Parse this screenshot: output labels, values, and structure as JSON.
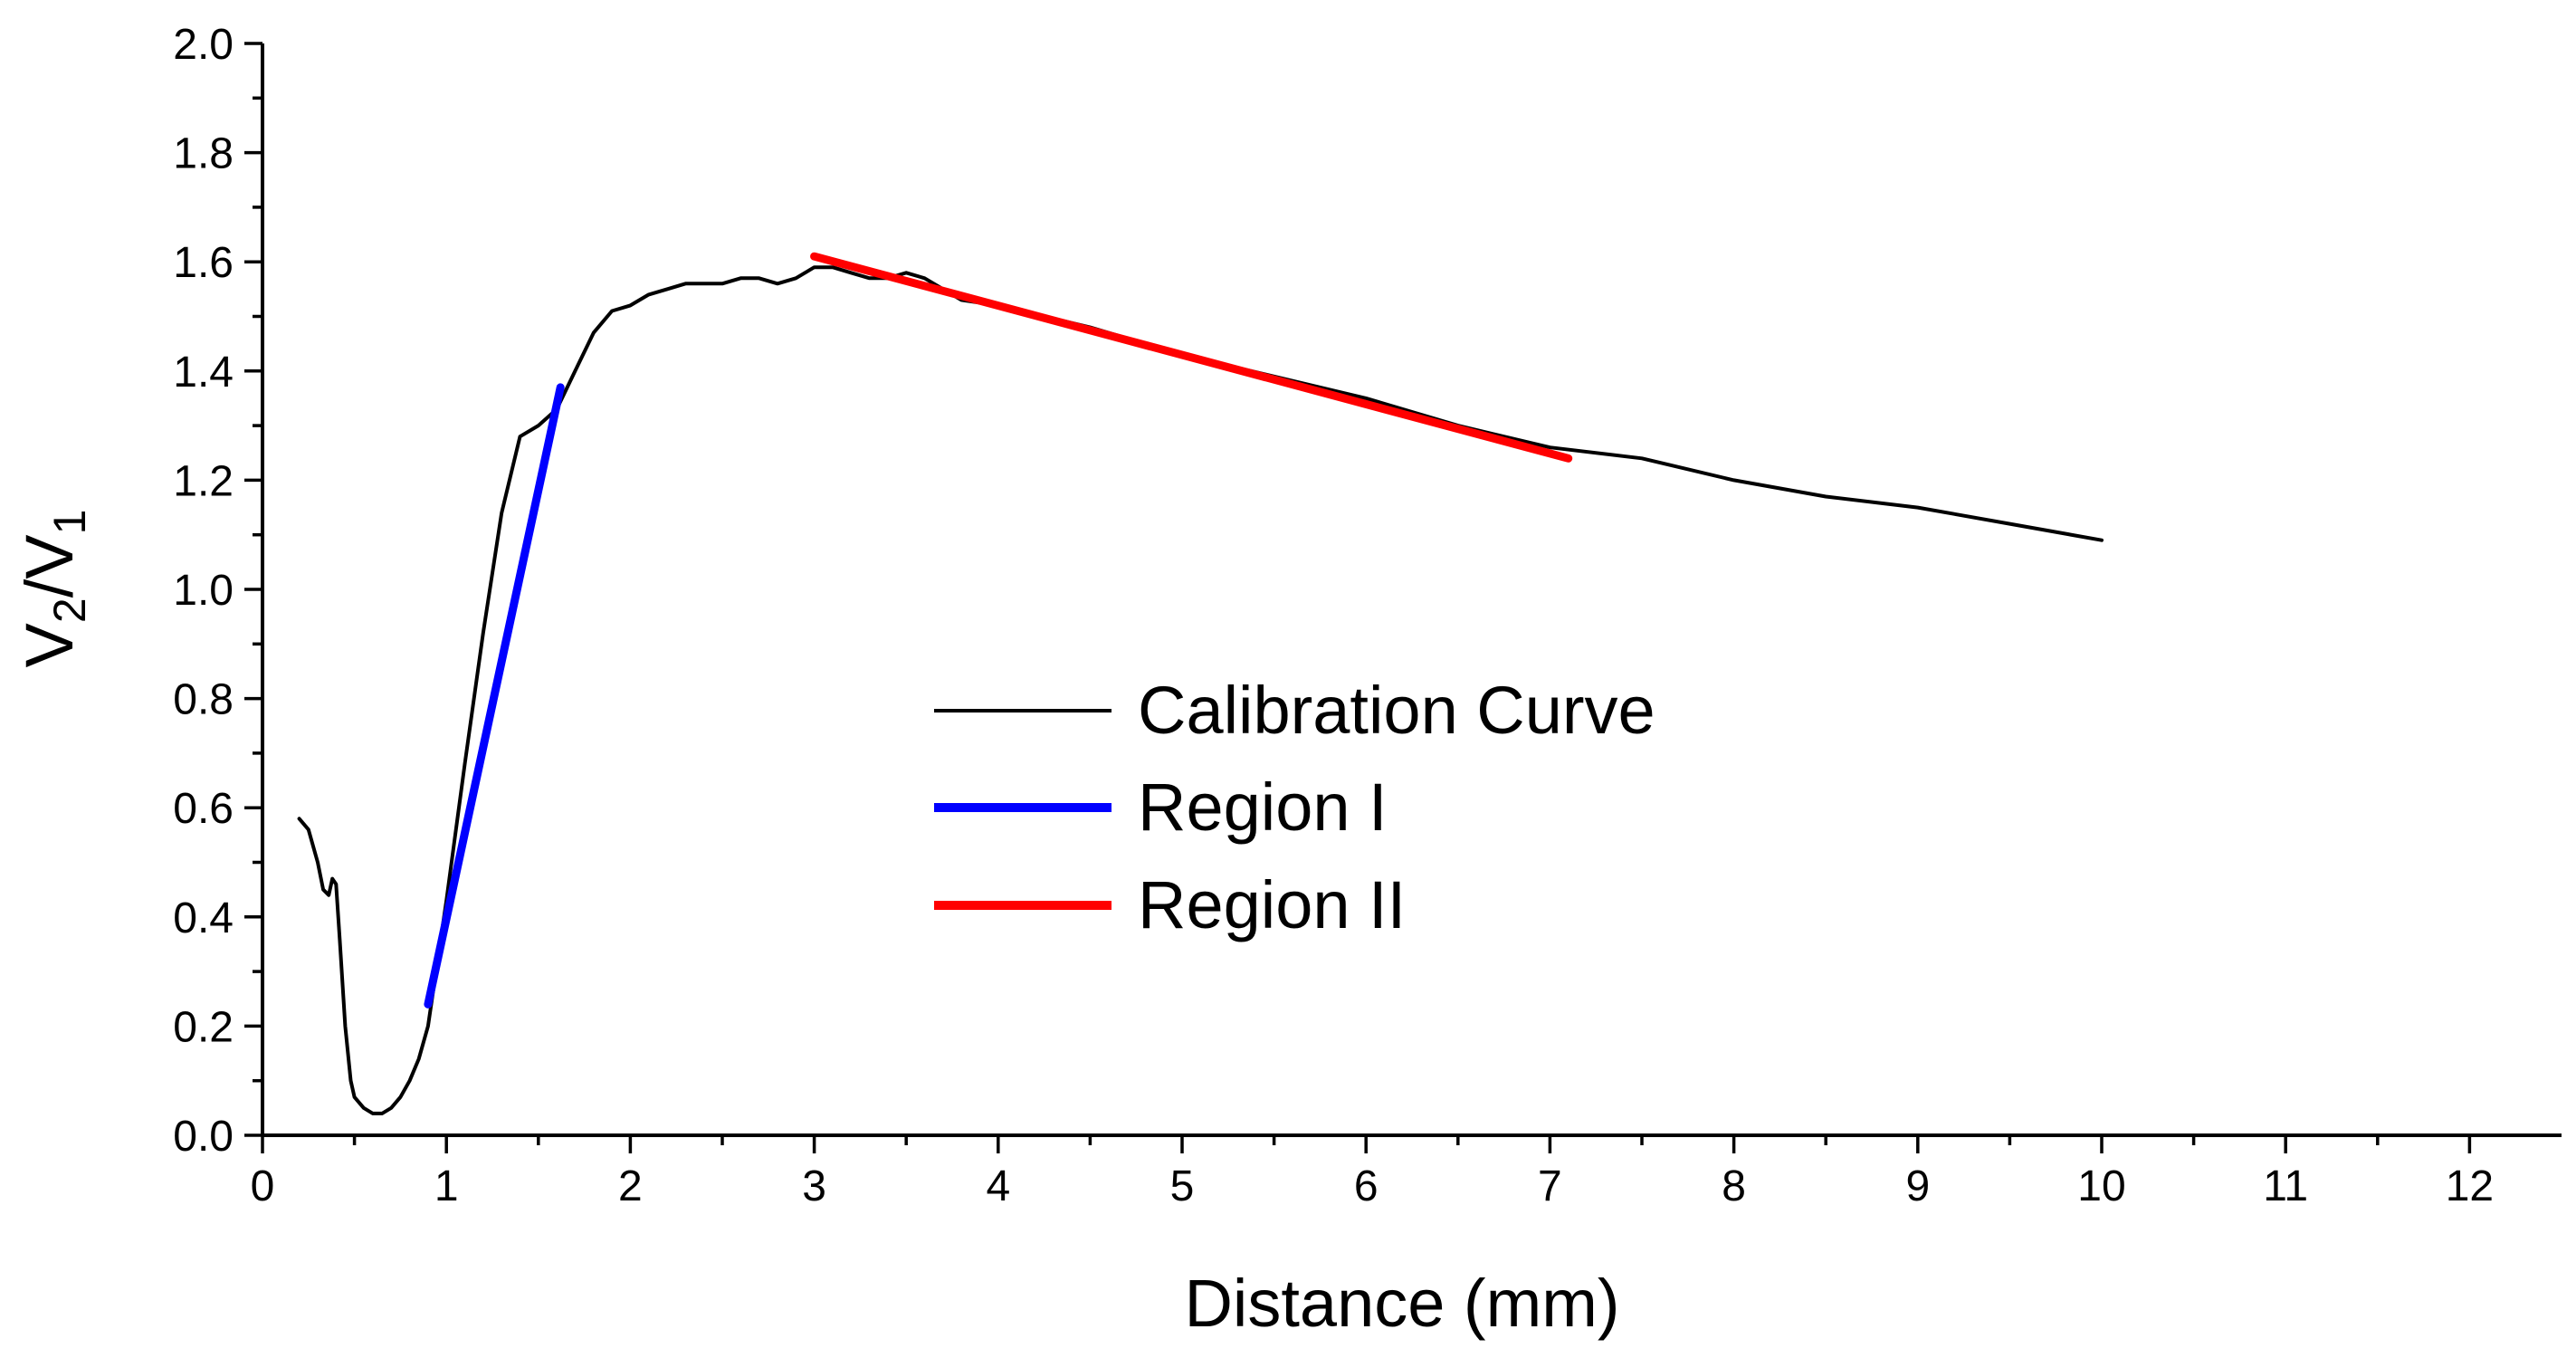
{
  "chart_data": {
    "type": "line",
    "xlabel": "Distance (mm)",
    "ylabel": {
      "base1": "V",
      "sub1": "2",
      "sep": "/V",
      "sub2": "1"
    },
    "xlim": [
      0,
      12.5
    ],
    "ylim": [
      0,
      2.0
    ],
    "xticks": [
      0,
      1,
      2,
      3,
      4,
      5,
      6,
      7,
      8,
      9,
      10,
      11,
      12
    ],
    "yticks": [
      "0.0",
      "0.2",
      "0.4",
      "0.6",
      "0.8",
      "1.0",
      "1.2",
      "1.4",
      "1.6",
      "1.8",
      "2.0"
    ],
    "grid": false,
    "legend_position": "center",
    "series": [
      {
        "name": "Calibration Curve",
        "color": "#000000",
        "x": [
          0.2,
          0.25,
          0.3,
          0.33,
          0.36,
          0.38,
          0.4,
          0.42,
          0.45,
          0.48,
          0.5,
          0.55,
          0.6,
          0.65,
          0.7,
          0.75,
          0.8,
          0.85,
          0.9,
          1.0,
          1.1,
          1.2,
          1.3,
          1.4,
          1.5,
          1.6,
          1.7,
          1.8,
          1.9,
          2.0,
          2.1,
          2.2,
          2.3,
          2.4,
          2.5,
          2.6,
          2.7,
          2.8,
          2.9,
          3.0,
          3.1,
          3.2,
          3.3,
          3.4,
          3.5,
          3.6,
          3.7,
          3.8,
          4.0,
          4.5,
          5.0,
          5.5,
          6.0,
          6.5,
          7.0,
          7.5,
          8.0,
          8.5,
          9.0,
          9.5,
          10.0
        ],
        "y": [
          0.58,
          0.56,
          0.5,
          0.45,
          0.44,
          0.47,
          0.46,
          0.36,
          0.2,
          0.1,
          0.07,
          0.05,
          0.04,
          0.04,
          0.05,
          0.07,
          0.1,
          0.14,
          0.2,
          0.43,
          0.68,
          0.92,
          1.14,
          1.28,
          1.3,
          1.33,
          1.4,
          1.47,
          1.51,
          1.52,
          1.54,
          1.55,
          1.56,
          1.56,
          1.56,
          1.57,
          1.57,
          1.56,
          1.57,
          1.59,
          1.59,
          1.58,
          1.57,
          1.57,
          1.58,
          1.57,
          1.55,
          1.53,
          1.52,
          1.48,
          1.43,
          1.39,
          1.35,
          1.3,
          1.26,
          1.24,
          1.2,
          1.17,
          1.15,
          1.12,
          1.09
        ]
      },
      {
        "name": "Region I",
        "color": "#0000ff",
        "x": [
          0.9,
          1.62
        ],
        "y": [
          0.24,
          1.37
        ]
      },
      {
        "name": "Region II",
        "color": "#ff0000",
        "x": [
          3.0,
          7.1
        ],
        "y": [
          1.61,
          1.24
        ]
      }
    ]
  }
}
